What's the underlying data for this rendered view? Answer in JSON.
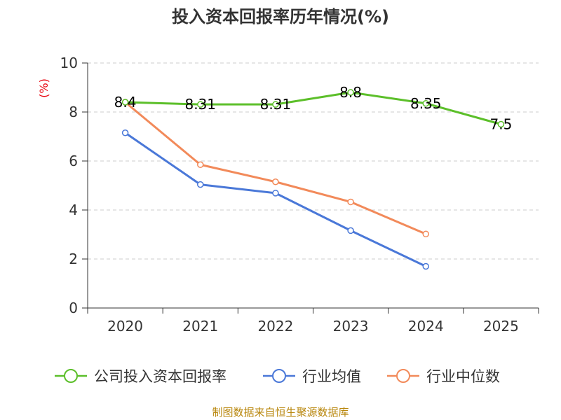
{
  "chart_data": {
    "type": "line",
    "title": "投入资本回报率历年情况(%)",
    "ylabel": "(%)",
    "xlabel": "",
    "categories": [
      "2020",
      "2021",
      "2022",
      "2023",
      "2024",
      "2025"
    ],
    "ylim": [
      0,
      10
    ],
    "yticks": [
      0,
      2,
      4,
      6,
      8,
      10
    ],
    "grid": true,
    "legend_position": "bottom",
    "series": [
      {
        "name": "公司投入资本回报率",
        "color": "#5cbf2a",
        "values": [
          8.4,
          8.31,
          8.31,
          8.8,
          8.35,
          7.5
        ],
        "labels": [
          "8.4",
          "8.31",
          "8.31",
          "8.8",
          "8.35",
          "7.5"
        ],
        "show_labels": true
      },
      {
        "name": "行业均值",
        "color": "#4a78d8",
        "values": [
          7.15,
          5.04,
          4.69,
          3.16,
          1.7,
          null
        ],
        "show_labels": false
      },
      {
        "name": "行业中位数",
        "color": "#f28a5a",
        "values": [
          8.4,
          5.85,
          5.15,
          4.33,
          3.02,
          null
        ],
        "show_labels": false
      }
    ],
    "source": "制图数据来自恒生聚源数据库"
  }
}
